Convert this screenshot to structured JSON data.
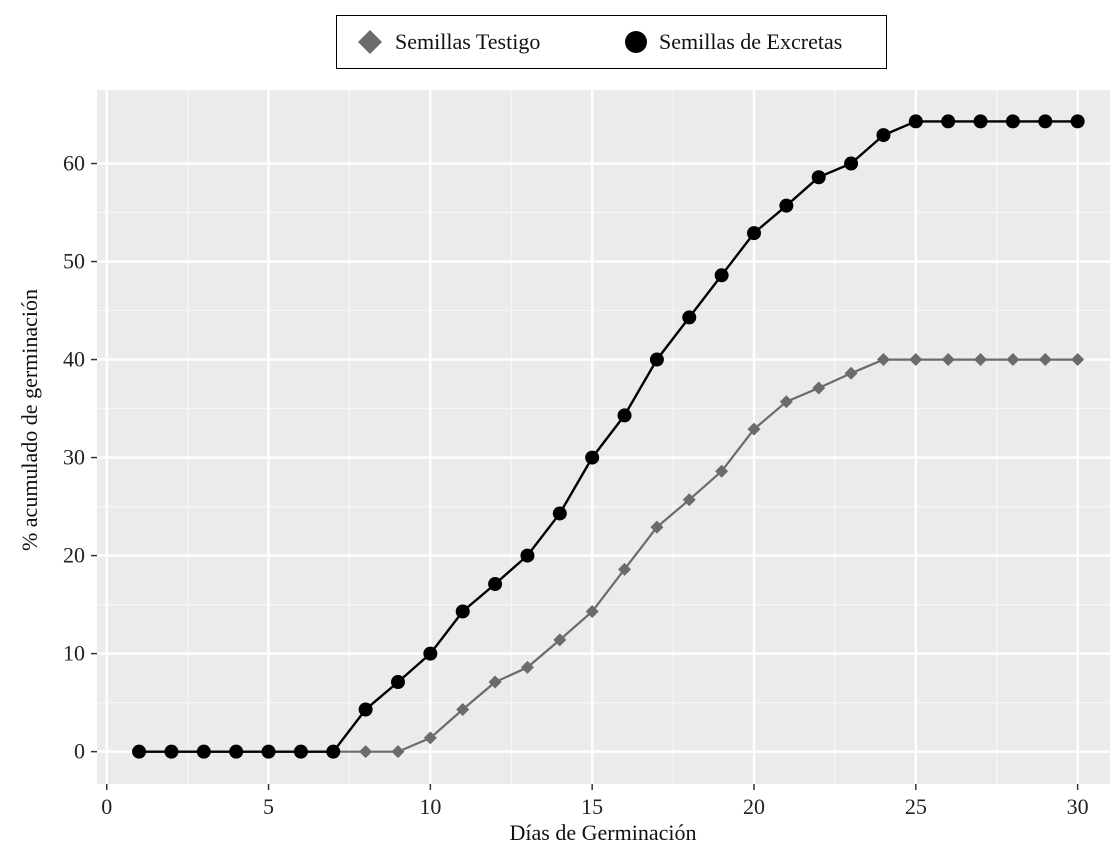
{
  "chart_data": {
    "type": "line",
    "title": "",
    "xlabel": "Días de Germinación",
    "ylabel": "% acumulado de germinación",
    "xlim": [
      -0.3,
      31
    ],
    "ylim": [
      -3.3,
      67.5
    ],
    "xticks": [
      0,
      5,
      10,
      15,
      20,
      25,
      30
    ],
    "yticks": [
      0,
      10,
      20,
      30,
      40,
      50,
      60
    ],
    "xtick_labels": [
      "0",
      "5",
      "10",
      "15",
      "20",
      "25",
      "30"
    ],
    "ytick_labels": [
      "0",
      "10",
      "20",
      "30",
      "40",
      "50",
      "60"
    ],
    "grid": true,
    "background": "#ebebeb",
    "legend_position": "top",
    "x": [
      1,
      2,
      3,
      4,
      5,
      6,
      7,
      8,
      9,
      10,
      11,
      12,
      13,
      14,
      15,
      16,
      17,
      18,
      19,
      20,
      21,
      22,
      23,
      24,
      25,
      26,
      27,
      28,
      29,
      30
    ],
    "series": [
      {
        "name": "Semillas Testigo",
        "marker": "diamond",
        "color": "#6b6b6b",
        "values": [
          0,
          0,
          0,
          0,
          0,
          0,
          0,
          0,
          0,
          1.4,
          4.3,
          7.1,
          8.6,
          11.4,
          14.3,
          18.6,
          22.9,
          25.7,
          28.6,
          32.9,
          35.7,
          37.1,
          38.6,
          40,
          40,
          40,
          40,
          40,
          40,
          40
        ]
      },
      {
        "name": "Semillas de Excretas",
        "marker": "circle",
        "color": "#000000",
        "values": [
          0,
          0,
          0,
          0,
          0,
          0,
          0,
          4.3,
          7.1,
          10,
          14.3,
          17.1,
          20,
          24.3,
          30,
          34.3,
          40,
          44.3,
          48.6,
          52.9,
          55.7,
          58.6,
          60,
          62.9,
          64.3,
          64.3,
          64.3,
          64.3,
          64.3,
          64.3
        ]
      }
    ]
  }
}
